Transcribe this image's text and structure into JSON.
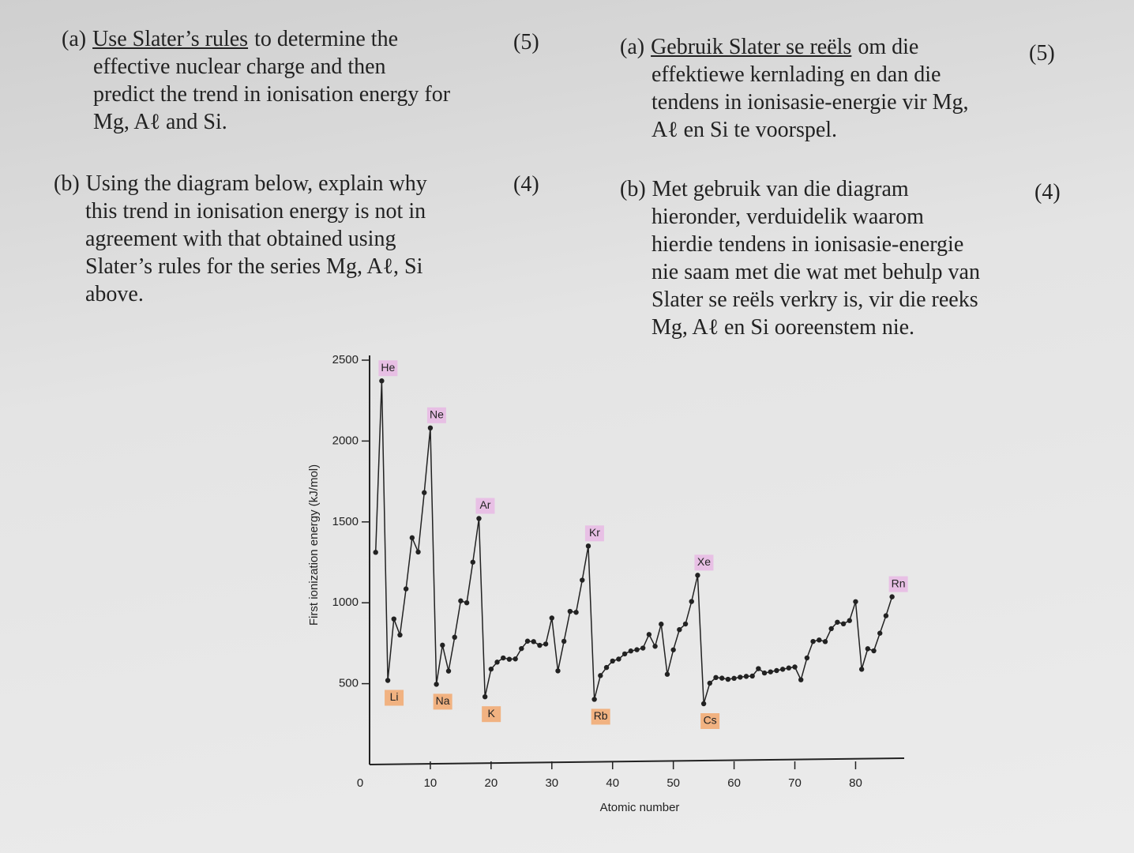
{
  "questions_en": [
    {
      "label": "(a)",
      "underlined": "Use Slater’s rules",
      "lines": [
        "to determine the",
        "effective nuclear charge and then",
        "predict the trend in ionisation energy for",
        "Mg, Aℓ and Si."
      ],
      "marks": "(5)"
    },
    {
      "label": "(b)",
      "lines": [
        "Using the diagram below, explain why",
        "this trend in ionisation energy is not in",
        "agreement with that obtained using",
        "Slater’s rules for the series Mg, Aℓ, Si",
        "above."
      ],
      "marks": "(4)"
    }
  ],
  "questions_af": [
    {
      "label": "(a)",
      "underlined": "Gebruik Slater se reëls",
      "lines": [
        "om die",
        "effektiewe kernlading en dan die",
        "tendens in ionisasie-energie vir Mg,",
        "Aℓ en Si te voorspel."
      ],
      "marks": "(5)"
    },
    {
      "label": "(b)",
      "lines": [
        "Met gebruik van die diagram",
        "hieronder, verduidelik waarom",
        "hierdie tendens in ionisasie-energie",
        "nie saam met die wat met behulp van",
        "Slater se reëls verkry is, vir die reeks",
        "Mg, Aℓ en Si ooreenstem nie."
      ],
      "marks": "(4)"
    }
  ],
  "chart_data": {
    "type": "line",
    "x_label": "Atomic number",
    "y_label": "First ionization energy (kJ/mol)",
    "x": [
      1,
      2,
      3,
      4,
      5,
      6,
      7,
      8,
      9,
      10,
      11,
      12,
      13,
      14,
      15,
      16,
      17,
      18,
      19,
      20,
      21,
      22,
      23,
      24,
      25,
      26,
      27,
      28,
      29,
      30,
      31,
      32,
      33,
      34,
      35,
      36,
      37,
      38,
      39,
      40,
      41,
      42,
      43,
      44,
      45,
      46,
      47,
      48,
      49,
      50,
      51,
      52,
      53,
      54,
      55,
      56,
      57,
      58,
      59,
      60,
      61,
      62,
      63,
      64,
      65,
      66,
      67,
      68,
      69,
      70,
      71,
      72,
      73,
      74,
      75,
      76,
      77,
      78,
      79,
      80,
      81,
      82,
      83,
      84,
      85,
      86
    ],
    "values": [
      1312,
      2372,
      520,
      900,
      801,
      1086,
      1402,
      1314,
      1681,
      2081,
      496,
      738,
      578,
      787,
      1012,
      1000,
      1251,
      1521,
      419,
      590,
      633,
      659,
      651,
      653,
      717,
      763,
      760,
      737,
      745,
      906,
      579,
      762,
      947,
      941,
      1140,
      1351,
      403,
      550,
      600,
      640,
      652,
      684,
      702,
      710,
      720,
      804,
      731,
      868,
      558,
      709,
      834,
      869,
      1008,
      1170,
      376,
      503,
      538,
      534,
      527,
      533,
      540,
      545,
      547,
      593,
      566,
      573,
      581,
      589,
      597,
      603,
      524,
      659,
      761,
      770,
      760,
      840,
      880,
      870,
      890,
      1007,
      589,
      716,
      703,
      812,
      920,
      1037
    ],
    "color": "#222222",
    "xlim": [
      0,
      88
    ],
    "ylim": [
      0,
      2500
    ],
    "xticks": [
      0,
      10,
      20,
      30,
      40,
      50,
      60,
      70,
      80
    ],
    "yticks": [
      500,
      1000,
      1500,
      2000,
      2500
    ],
    "annotations": [
      {
        "text": "He",
        "x": 2,
        "color": "#e7b9e4"
      },
      {
        "text": "Ne",
        "x": 10,
        "color": "#e7b9e4"
      },
      {
        "text": "Ar",
        "x": 18,
        "color": "#e7b9e4"
      },
      {
        "text": "Kr",
        "x": 36,
        "color": "#e7b9e4"
      },
      {
        "text": "Xe",
        "x": 54,
        "color": "#e7b9e4"
      },
      {
        "text": "Rn",
        "x": 86,
        "color": "#e7b9e4"
      },
      {
        "text": "Li",
        "x": 3,
        "color": "#f2a86e"
      },
      {
        "text": "Na",
        "x": 11,
        "color": "#f2a86e"
      },
      {
        "text": "K",
        "x": 19,
        "color": "#f2a86e"
      },
      {
        "text": "Rb",
        "x": 37,
        "color": "#f2a86e"
      },
      {
        "text": "Cs",
        "x": 55,
        "color": "#f2a86e"
      }
    ]
  }
}
